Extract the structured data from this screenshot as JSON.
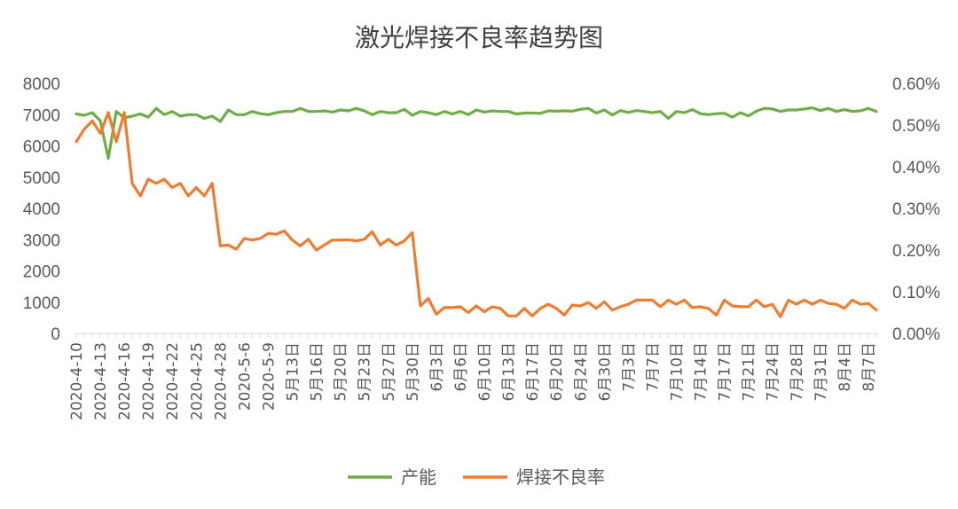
{
  "chart_data": {
    "type": "line",
    "title": "激光焊接不良率趋势图",
    "xlabel": "",
    "ylabel": "",
    "ylim": [
      0,
      8000
    ],
    "y2lim": [
      0,
      0.006
    ],
    "y_ticks": [
      "0",
      "1000",
      "2000",
      "3000",
      "4000",
      "5000",
      "6000",
      "7000",
      "8000"
    ],
    "y2_ticks": [
      "0.00%",
      "0.10%",
      "0.20%",
      "0.30%",
      "0.40%",
      "0.50%",
      "0.60%"
    ],
    "grid": false,
    "legend_position": "bottom",
    "x_labels": [
      "2020-4-10",
      "2020-4-13",
      "2020-4-16",
      "2020-4-19",
      "2020-4-22",
      "2020-4-25",
      "2020-4-28",
      "2020-5-6",
      "2020-5-9",
      "5月13日",
      "5月16日",
      "5月20日",
      "5月23日",
      "5月27日",
      "5月30日",
      "6月3日",
      "6月6日",
      "6月10日",
      "6月13日",
      "6月17日",
      "6月20日",
      "6月24日",
      "6月30日",
      "7月3日",
      "7月7日",
      "7月10日",
      "7月14日",
      "7月17日",
      "7月21日",
      "7月24日",
      "7月28日",
      "7月31日",
      "8月4日",
      "8月7日"
    ],
    "series": [
      {
        "name": "产能",
        "axis": "left",
        "color": "#70ad47",
        "values": [
          7020,
          6980,
          7060,
          6800,
          5600,
          7100,
          6900,
          6950,
          7020,
          6920,
          7200,
          7000,
          7100,
          6950,
          7000,
          7000,
          6880,
          6950,
          6780,
          7150,
          7000,
          7000,
          7100,
          7030,
          7000,
          7060,
          7100,
          7100,
          7200,
          7100,
          7100,
          7120,
          7080,
          7150,
          7120,
          7200,
          7120,
          7000,
          7100,
          7060,
          7060,
          7170,
          6980,
          7100,
          7060,
          7000,
          7100,
          7020,
          7100,
          7000,
          7150,
          7080,
          7120,
          7100,
          7100,
          7020,
          7050,
          7050,
          7040,
          7120,
          7110,
          7120,
          7110,
          7170,
          7200,
          7050,
          7150,
          6990,
          7130,
          7070,
          7130,
          7100,
          7060,
          7100,
          6880,
          7100,
          7060,
          7160,
          7030,
          7000,
          7030,
          7040,
          6920,
          7060,
          6960,
          7110,
          7200,
          7180,
          7100,
          7150,
          7150,
          7180,
          7220,
          7130,
          7200,
          7100,
          7160,
          7100,
          7120,
          7200,
          7100
        ]
      },
      {
        "name": "焊接不良率",
        "axis": "right",
        "color": "#ed7d31",
        "values": [
          0.0046,
          0.0049,
          0.0051,
          0.0048,
          0.0053,
          0.0046,
          0.0053,
          0.0036,
          0.0033,
          0.0037,
          0.0036,
          0.0037,
          0.0035,
          0.0036,
          0.0033,
          0.0035,
          0.0033,
          0.0036,
          0.0021,
          0.00212,
          0.00202,
          0.00228,
          0.00224,
          0.00228,
          0.0024,
          0.00238,
          0.00246,
          0.00224,
          0.0021,
          0.00226,
          0.002,
          0.00212,
          0.00224,
          0.00224,
          0.00225,
          0.00222,
          0.00226,
          0.00244,
          0.00212,
          0.00226,
          0.00212,
          0.00222,
          0.00242,
          0.00066,
          0.00084,
          0.00046,
          0.00062,
          0.00062,
          0.00064,
          0.0005,
          0.00066,
          0.00052,
          0.00064,
          0.0006,
          0.00042,
          0.00042,
          0.0006,
          0.00042,
          0.0006,
          0.0007,
          0.0006,
          0.00044,
          0.00068,
          0.00066,
          0.00074,
          0.0006,
          0.00076,
          0.00056,
          0.00064,
          0.0007,
          0.0008,
          0.0008,
          0.0008,
          0.00064,
          0.0008,
          0.0007,
          0.0008,
          0.00062,
          0.00064,
          0.0006,
          0.00044,
          0.0008,
          0.00066,
          0.00064,
          0.00064,
          0.0008,
          0.00064,
          0.0007,
          0.0004,
          0.0008,
          0.0007,
          0.0008,
          0.0007,
          0.0008,
          0.00072,
          0.0007,
          0.0006,
          0.0008,
          0.0007,
          0.00072,
          0.00056
        ]
      }
    ]
  }
}
